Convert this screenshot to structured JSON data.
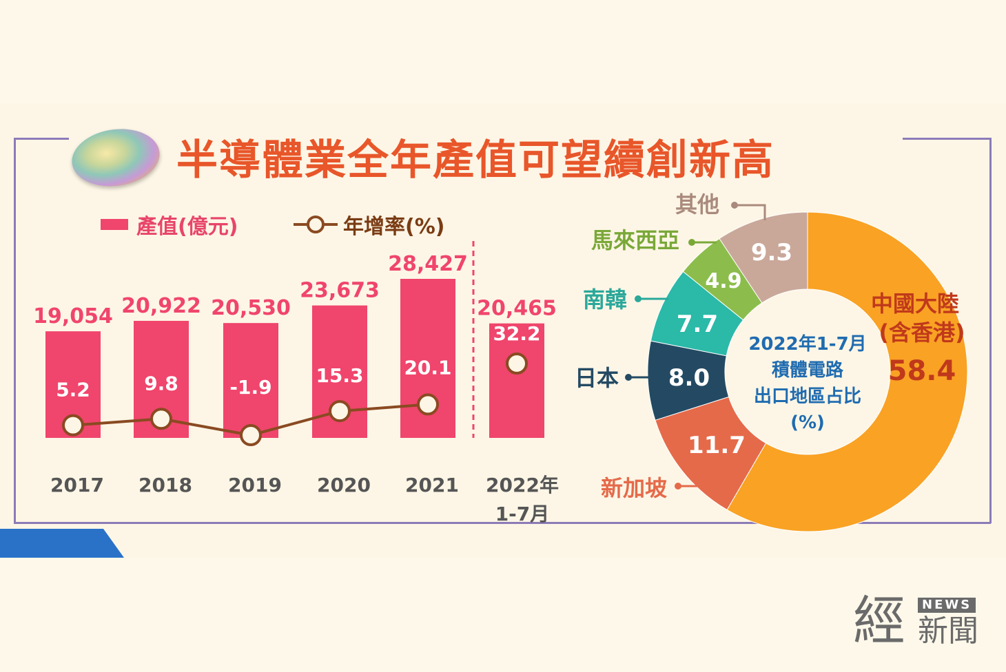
{
  "title": "半導體業全年產值可望續創新高",
  "legend": {
    "bar_label": "產值(億元)",
    "line_label": "年增率(%)"
  },
  "colors": {
    "bar": "#f0456c",
    "line": "#8a4a22",
    "title": "#e8562a"
  },
  "chart_data": [
    {
      "type": "bar",
      "categories": [
        "2017",
        "2018",
        "2019",
        "2020",
        "2021",
        "2022年\n1-7月"
      ],
      "series": [
        {
          "name": "產值(億元)",
          "values": [
            19054,
            20922,
            20530,
            23673,
            28427,
            20465
          ],
          "labels": [
            "19,054",
            "20,922",
            "20,530",
            "23,673",
            "28,427",
            "20,465"
          ]
        },
        {
          "name": "年增率(%)",
          "values": [
            5.2,
            9.8,
            -1.9,
            15.3,
            20.1,
            32.2
          ],
          "labels": [
            "5.2",
            "9.8",
            "-1.9",
            "15.3",
            "20.1",
            "32.2"
          ]
        }
      ]
    },
    {
      "type": "pie",
      "center_text": [
        "2022年1-7月",
        "積體電路",
        "出口地區占比",
        "(%)"
      ],
      "slices": [
        {
          "label": "中國大陸\n(含香港)",
          "value": 58.4,
          "color": "#f9a224"
        },
        {
          "label": "新加坡",
          "value": 11.7,
          "color": "#e56a4a"
        },
        {
          "label": "日本",
          "value": 8.0,
          "color": "#244a63"
        },
        {
          "label": "南韓",
          "value": 7.7,
          "color": "#2bb9a8"
        },
        {
          "label": "馬來西亞",
          "value": 4.9,
          "color": "#8cbd4c"
        },
        {
          "label": "其他",
          "value": 9.3,
          "color": "#c9a89a"
        }
      ],
      "label_colors": {
        "中國大陸\n(含香港)": "#c0391b",
        "新加坡": "#e56a4a",
        "日本": "#244a63",
        "南韓": "#2aa89a",
        "馬來西亞": "#7aa838",
        "其他": "#a98a7c"
      }
    }
  ],
  "logo": {
    "char": "經",
    "news": "NEWS",
    "name": "新聞"
  }
}
